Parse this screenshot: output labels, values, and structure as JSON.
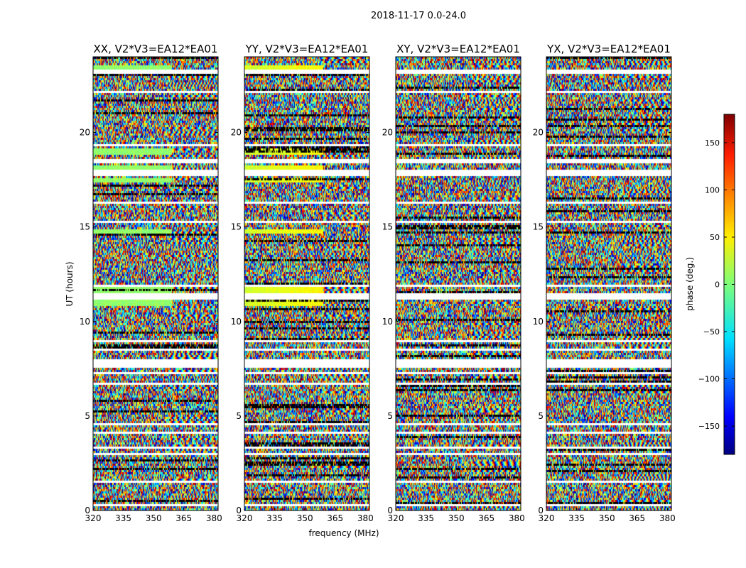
{
  "figure_title": "2018-11-17 0.0-24.0",
  "chart_data": {
    "type": "heatmap",
    "suptitle": "2018-11-17 0.0-24.0",
    "xlabel": "frequency (MHz)",
    "ylabel": "UT (hours)",
    "xlim": [
      320,
      382
    ],
    "ylim": [
      0,
      24
    ],
    "xticks": [
      320,
      335,
      350,
      365,
      380
    ],
    "yticks": [
      0,
      5,
      10,
      15,
      20
    ],
    "panels": [
      {
        "title": "XX, V2*V3=EA12*EA01"
      },
      {
        "title": "YY, V2*V3=EA12*EA01"
      },
      {
        "title": "XY, V2*V3=EA12*EA01"
      },
      {
        "title": "YX, V2*V3=EA12*EA01"
      }
    ],
    "colorbar": {
      "label": "phase (deg.)",
      "range": [
        -180,
        180
      ],
      "ticks": [
        -150,
        -100,
        -50,
        0,
        50,
        100,
        150
      ],
      "tick_labels": [
        "−150",
        "−100",
        "−50",
        "0",
        "50",
        "100",
        "150"
      ],
      "colormap": "jet"
    },
    "flagged_bands_hours": [
      [
        0.25,
        0.35
      ],
      [
        1.5,
        1.6
      ],
      [
        2.95,
        3.05
      ],
      [
        3.3,
        3.4
      ],
      [
        4.1,
        4.2
      ],
      [
        4.55,
        4.62
      ],
      [
        6.7,
        6.8
      ],
      [
        7.3,
        7.4
      ],
      [
        7.65,
        8.05
      ],
      [
        8.5,
        8.6
      ],
      [
        9.0,
        9.1
      ],
      [
        11.2,
        11.5
      ],
      [
        11.85,
        11.95
      ],
      [
        15.3,
        15.4
      ],
      [
        16.25,
        16.35
      ],
      [
        17.75,
        18.05
      ],
      [
        18.45,
        18.65
      ],
      [
        19.35,
        19.45
      ],
      [
        22.1,
        22.2
      ],
      [
        23.15,
        23.35
      ]
    ],
    "coherent_bands_hours": [
      [
        10.9,
        11.2
      ],
      [
        11.5,
        11.85
      ],
      [
        14.75,
        14.95
      ],
      [
        17.4,
        17.6
      ],
      [
        18.05,
        18.3
      ],
      [
        18.85,
        19.25
      ],
      [
        23.4,
        23.55
      ]
    ]
  }
}
